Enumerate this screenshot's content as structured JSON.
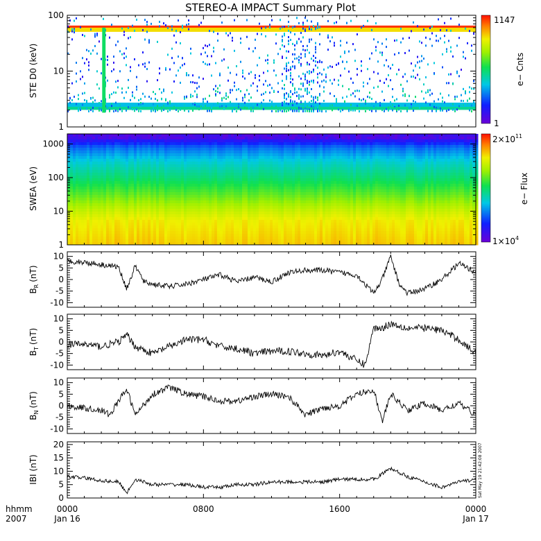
{
  "title": "STEREO-A IMPACT Summary Plot",
  "stamp": "Sat May 19 21:42:08 2007",
  "x_axis": {
    "row_label_1": "hhmm",
    "row_label_2": "2007",
    "ticks": [
      {
        "hour": 0,
        "hhmm": "0000",
        "date": "Jan 16"
      },
      {
        "hour": 8,
        "hhmm": "0800",
        "date": ""
      },
      {
        "hour": 16,
        "hhmm": "1600",
        "date": ""
      },
      {
        "hour": 24,
        "hhmm": "0000",
        "date": "Jan 17"
      }
    ]
  },
  "chart_data": [
    {
      "type": "heatmap",
      "ylabel": "STE D0 (keV)",
      "yscale": "log",
      "ylim": [
        1,
        100
      ],
      "yticks": [
        {
          "v": 1,
          "label": "1"
        },
        {
          "v": 10,
          "label": "10"
        },
        {
          "v": 100,
          "label": "100"
        }
      ],
      "colorbar": {
        "label": "e− Cnts",
        "min_label": "1",
        "max_label": "1147",
        "min": 1,
        "max": 1147
      },
      "bands": [
        {
          "energy_keV": 60,
          "level": 0.97,
          "note": "persistent high-count band"
        },
        {
          "energy_keV": 55,
          "level": 0.8
        },
        {
          "energy_keV": 2.2,
          "level": 0.45
        },
        {
          "energy_keV": 2.5,
          "level": 0.35
        }
      ],
      "enhancements": [
        {
          "hour_start": 12.5,
          "hour_end": 14.8,
          "level": 0.35,
          "energy_range_keV": [
            3,
            100
          ]
        },
        {
          "hour_start": 2.05,
          "hour_end": 2.25,
          "level": 0.5,
          "energy_range_keV": [
            1.8,
            60
          ]
        }
      ]
    },
    {
      "type": "heatmap",
      "ylabel": "SWEA (eV)",
      "yscale": "log",
      "ylim": [
        1,
        2000
      ],
      "yticks": [
        {
          "v": 1,
          "label": "1"
        },
        {
          "v": 10,
          "label": "10"
        },
        {
          "v": 100,
          "label": "100"
        },
        {
          "v": 1000,
          "label": "1000"
        }
      ],
      "colorbar": {
        "label": "e− Flux",
        "min_mantissa": "1×10",
        "min_exp": "4",
        "max_mantissa": "2×10",
        "max_exp": "11",
        "min": 10000,
        "max": 200000000000
      },
      "spectrum_profile": [
        {
          "energy_eV": 1,
          "level": 0.82
        },
        {
          "energy_eV": 5,
          "level": 0.78
        },
        {
          "energy_eV": 10,
          "level": 0.72
        },
        {
          "energy_eV": 30,
          "level": 0.6
        },
        {
          "energy_eV": 100,
          "level": 0.48
        },
        {
          "energy_eV": 300,
          "level": 0.38
        },
        {
          "energy_eV": 800,
          "level": 0.25
        },
        {
          "energy_eV": 1500,
          "level": 0.08
        }
      ]
    },
    {
      "type": "line",
      "ylabel": "B",
      "ylabel_sub": "R",
      "ylabel_unit": "(nT)",
      "ylim": [
        -12,
        12
      ],
      "yticks": [
        -10,
        -5,
        0,
        5,
        10
      ],
      "x": [
        0,
        1,
        2,
        3,
        3.5,
        4,
        4.5,
        5,
        6,
        7,
        8,
        9,
        10,
        11,
        12,
        13,
        14,
        15,
        16,
        17,
        18,
        18.5,
        19,
        19.5,
        20,
        21,
        22,
        23,
        24
      ],
      "y": [
        8,
        7.5,
        6.5,
        5.5,
        -4,
        6,
        -1,
        -2,
        -3,
        -2,
        0,
        2,
        -1,
        1,
        -1,
        3,
        4,
        4,
        3,
        2,
        -6,
        0,
        10,
        -2,
        -6,
        -4,
        0,
        7,
        3
      ]
    },
    {
      "type": "line",
      "ylabel": "B",
      "ylabel_sub": "T",
      "ylabel_unit": "(nT)",
      "ylim": [
        -12,
        12
      ],
      "yticks": [
        -10,
        -5,
        0,
        5,
        10
      ],
      "x": [
        0,
        1,
        2,
        3,
        3.5,
        4,
        5,
        6,
        7,
        8,
        9,
        10,
        11,
        12,
        13,
        14,
        15,
        16,
        17,
        17.5,
        18,
        18.5,
        19,
        20,
        21,
        22,
        23,
        24
      ],
      "y": [
        -1,
        -1,
        -2,
        0,
        3,
        -2,
        -5,
        -2,
        1,
        1,
        -2,
        -3,
        -5,
        -4,
        -4,
        -5,
        -6,
        -4,
        -8,
        -10,
        6,
        6,
        8,
        6,
        6,
        5,
        1,
        -5
      ]
    },
    {
      "type": "line",
      "ylabel": "B",
      "ylabel_sub": "N",
      "ylabel_unit": "(nT)",
      "ylim": [
        -12,
        12
      ],
      "yticks": [
        -10,
        -5,
        0,
        5,
        10
      ],
      "x": [
        0,
        1,
        2,
        2.5,
        3,
        3.5,
        4,
        5,
        6,
        7,
        8,
        9,
        10,
        11,
        12,
        13,
        14,
        15,
        16,
        17,
        18,
        18.5,
        19,
        20,
        21,
        22,
        23,
        24
      ],
      "y": [
        0,
        -1,
        -2,
        -4,
        2,
        7,
        -4,
        5,
        8,
        5,
        4,
        2,
        2,
        4,
        5,
        4,
        -4,
        -1,
        0,
        5,
        7,
        -7,
        5,
        -2,
        1,
        -2,
        1,
        -4
      ]
    },
    {
      "type": "line",
      "ylabel": "IBI (nT)",
      "ylim": [
        0,
        21
      ],
      "yticks": [
        0,
        5,
        10,
        15,
        20
      ],
      "x": [
        0,
        1,
        2,
        3,
        3.5,
        4,
        5,
        6,
        7,
        8,
        9,
        10,
        11,
        12,
        13,
        14,
        15,
        16,
        17,
        18,
        19,
        20,
        21,
        22,
        23,
        24
      ],
      "y": [
        8,
        7.5,
        6.5,
        6,
        2,
        7,
        5,
        5,
        5,
        4,
        4,
        5,
        5,
        6,
        6,
        6,
        6,
        7,
        7,
        7,
        11,
        8,
        6,
        4,
        6,
        7
      ]
    }
  ]
}
